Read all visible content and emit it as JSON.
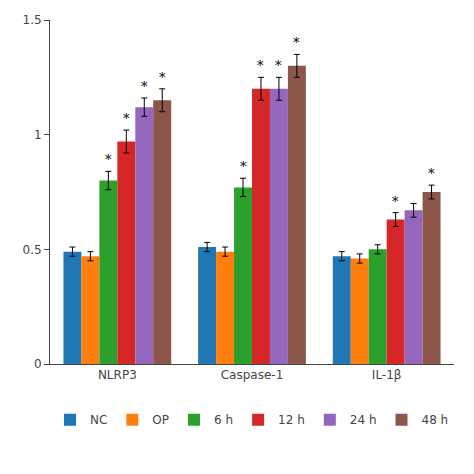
{
  "chart_data": {
    "type": "bar",
    "categories": [
      "NLRP3",
      "Caspase-1",
      "IL-1β"
    ],
    "series": [
      {
        "name": "NC",
        "values": [
          0.49,
          0.51,
          0.47
        ],
        "errors": [
          0.02,
          0.02,
          0.02
        ]
      },
      {
        "name": "OP",
        "values": [
          0.47,
          0.49,
          0.46
        ],
        "errors": [
          0.02,
          0.02,
          0.02
        ]
      },
      {
        "name": "6 h",
        "values": [
          0.8,
          0.77,
          0.5
        ],
        "errors": [
          0.04,
          0.04,
          0.02
        ]
      },
      {
        "name": "12 h",
        "values": [
          0.97,
          1.2,
          0.63
        ],
        "errors": [
          0.05,
          0.05,
          0.03
        ]
      },
      {
        "name": "24 h",
        "values": [
          1.12,
          1.2,
          0.67
        ],
        "errors": [
          0.04,
          0.05,
          0.03
        ]
      },
      {
        "name": "48 h",
        "values": [
          1.15,
          1.3,
          0.75
        ],
        "errors": [
          0.05,
          0.05,
          0.03
        ]
      }
    ],
    "annotations": [
      {
        "text": "*",
        "category": "NLRP3",
        "series": "6 h"
      },
      {
        "text": "*",
        "category": "NLRP3",
        "series": "12 h"
      },
      {
        "text": "*",
        "category": "NLRP3",
        "series": "24 h"
      },
      {
        "text": "*",
        "category": "NLRP3",
        "series": "48 h"
      },
      {
        "text": "*",
        "category": "Caspase-1",
        "series": "6 h"
      },
      {
        "text": "*",
        "category": "Caspase-1",
        "series": "12 h"
      },
      {
        "text": "*",
        "category": "Caspase-1",
        "series": "24 h"
      },
      {
        "text": "*",
        "category": "Caspase-1",
        "series": "48 h"
      },
      {
        "text": "*",
        "category": "IL-1β",
        "series": "12 h"
      },
      {
        "text": "*",
        "category": "IL-1β",
        "series": "48 h"
      }
    ],
    "ylim": [
      0,
      1.5
    ],
    "yticks": [
      0,
      0.5,
      1,
      1.5
    ],
    "grid": false,
    "legend": "bottom"
  }
}
